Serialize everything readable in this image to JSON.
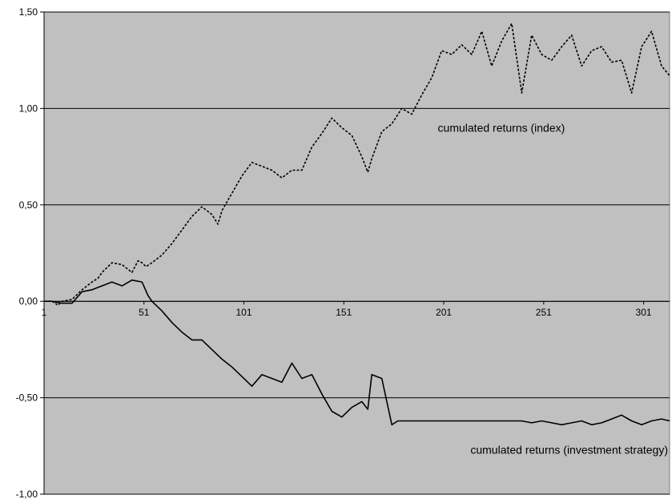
{
  "chart_data": {
    "type": "line",
    "title": "",
    "xlabel": "",
    "ylabel": "",
    "ylim": [
      -1.0,
      1.5
    ],
    "xlim": [
      1,
      314
    ],
    "y_ticks": [
      1.5,
      1.0,
      0.5,
      0.0,
      -0.5,
      -1.0
    ],
    "y_tick_labels": [
      "1,50",
      "1,00",
      "0,50",
      "0,00",
      "-0,50",
      "-1,00"
    ],
    "x_ticks": [
      1,
      51,
      101,
      151,
      201,
      251,
      301
    ],
    "x_tick_labels": [
      "1",
      "51",
      "101",
      "151",
      "201",
      "251",
      "301"
    ],
    "grid": "horizontal",
    "background_color": "#c0c0c0",
    "line_color": "#000000",
    "series": [
      {
        "style": "dotted",
        "annotation": "cumulated returns (index)",
        "x": [
          1,
          5,
          8,
          10,
          15,
          20,
          25,
          28,
          30,
          35,
          40,
          45,
          48,
          50,
          52,
          55,
          60,
          65,
          70,
          75,
          80,
          85,
          88,
          90,
          95,
          100,
          105,
          110,
          115,
          120,
          125,
          130,
          135,
          140,
          145,
          150,
          155,
          160,
          163,
          165,
          170,
          175,
          180,
          185,
          190,
          195,
          200,
          205,
          210,
          215,
          220,
          225,
          230,
          235,
          240,
          245,
          250,
          255,
          260,
          265,
          270,
          275,
          280,
          285,
          290,
          295,
          300,
          305,
          310,
          314
        ],
        "values": [
          0.0,
          0.0,
          -0.02,
          0.0,
          0.01,
          0.06,
          0.1,
          0.12,
          0.15,
          0.2,
          0.19,
          0.15,
          0.21,
          0.2,
          0.18,
          0.2,
          0.24,
          0.3,
          0.37,
          0.44,
          0.49,
          0.45,
          0.4,
          0.47,
          0.56,
          0.65,
          0.72,
          0.7,
          0.68,
          0.64,
          0.68,
          0.68,
          0.8,
          0.87,
          0.95,
          0.9,
          0.86,
          0.75,
          0.67,
          0.74,
          0.88,
          0.92,
          1.0,
          0.97,
          1.07,
          1.16,
          1.3,
          1.28,
          1.33,
          1.28,
          1.4,
          1.22,
          1.35,
          1.44,
          1.08,
          1.38,
          1.28,
          1.25,
          1.32,
          1.38,
          1.22,
          1.3,
          1.32,
          1.24,
          1.25,
          1.08,
          1.32,
          1.4,
          1.22,
          1.17
        ]
      },
      {
        "style": "solid",
        "annotation": "cumulated returns (investment strategy)",
        "x": [
          1,
          5,
          10,
          15,
          20,
          25,
          30,
          35,
          40,
          45,
          50,
          53,
          55,
          60,
          65,
          70,
          75,
          80,
          85,
          90,
          95,
          100,
          105,
          110,
          115,
          120,
          125,
          130,
          135,
          140,
          145,
          150,
          155,
          160,
          163,
          165,
          170,
          175,
          178,
          180,
          190,
          200,
          210,
          220,
          230,
          240,
          245,
          250,
          255,
          260,
          265,
          270,
          275,
          280,
          285,
          290,
          295,
          300,
          305,
          310,
          314
        ],
        "values": [
          0.0,
          0.0,
          -0.01,
          -0.01,
          0.05,
          0.06,
          0.08,
          0.1,
          0.08,
          0.11,
          0.1,
          0.03,
          0.0,
          -0.05,
          -0.11,
          -0.16,
          -0.2,
          -0.2,
          -0.25,
          -0.3,
          -0.34,
          -0.39,
          -0.44,
          -0.38,
          -0.4,
          -0.42,
          -0.32,
          -0.4,
          -0.38,
          -0.48,
          -0.57,
          -0.6,
          -0.55,
          -0.52,
          -0.56,
          -0.38,
          -0.4,
          -0.64,
          -0.62,
          -0.62,
          -0.62,
          -0.62,
          -0.62,
          -0.62,
          -0.62,
          -0.62,
          -0.63,
          -0.62,
          -0.63,
          -0.64,
          -0.63,
          -0.62,
          -0.64,
          -0.63,
          -0.61,
          -0.59,
          -0.62,
          -0.64,
          -0.62,
          -0.61,
          -0.62
        ]
      }
    ]
  }
}
